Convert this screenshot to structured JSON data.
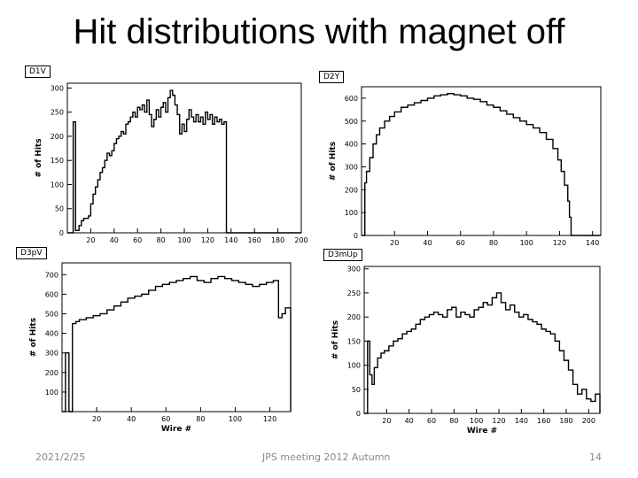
{
  "slide": {
    "title": "Hit distributions with magnet off",
    "footer_date": "2021/2/25",
    "footer_center": "JPS meeting 2012 Autumn",
    "page_number": "14"
  },
  "chart_data": [
    {
      "type": "histogram",
      "title": "D1V",
      "xlabel": "",
      "ylabel": "# of Hits",
      "xlim": [
        0,
        200
      ],
      "ylim": [
        0,
        310
      ],
      "xticks": [
        20,
        40,
        60,
        80,
        100,
        120,
        140,
        160,
        180,
        200
      ],
      "yticks": [
        0,
        50,
        100,
        150,
        200,
        250,
        300
      ],
      "series": [
        {
          "points": [
            [
              0,
              0
            ],
            [
              4,
              0
            ],
            [
              5,
              230
            ],
            [
              6,
              230
            ],
            [
              7,
              5
            ],
            [
              10,
              15
            ],
            [
              12,
              25
            ],
            [
              14,
              30
            ],
            [
              16,
              30
            ],
            [
              18,
              35
            ],
            [
              20,
              60
            ],
            [
              22,
              80
            ],
            [
              24,
              95
            ],
            [
              26,
              110
            ],
            [
              28,
              125
            ],
            [
              30,
              135
            ],
            [
              32,
              150
            ],
            [
              34,
              165
            ],
            [
              36,
              160
            ],
            [
              38,
              170
            ],
            [
              40,
              185
            ],
            [
              42,
              195
            ],
            [
              44,
              200
            ],
            [
              46,
              210
            ],
            [
              48,
              205
            ],
            [
              50,
              225
            ],
            [
              52,
              230
            ],
            [
              54,
              240
            ],
            [
              56,
              250
            ],
            [
              58,
              240
            ],
            [
              60,
              260
            ],
            [
              62,
              255
            ],
            [
              64,
              265
            ],
            [
              66,
              250
            ],
            [
              68,
              275
            ],
            [
              70,
              245
            ],
            [
              72,
              220
            ],
            [
              74,
              235
            ],
            [
              76,
              255
            ],
            [
              78,
              240
            ],
            [
              80,
              260
            ],
            [
              82,
              270
            ],
            [
              84,
              250
            ],
            [
              86,
              280
            ],
            [
              88,
              295
            ],
            [
              90,
              285
            ],
            [
              92,
              265
            ],
            [
              94,
              245
            ],
            [
              96,
              205
            ],
            [
              98,
              225
            ],
            [
              100,
              210
            ],
            [
              102,
              235
            ],
            [
              104,
              255
            ],
            [
              106,
              240
            ],
            [
              108,
              230
            ],
            [
              110,
              245
            ],
            [
              112,
              230
            ],
            [
              114,
              240
            ],
            [
              116,
              225
            ],
            [
              118,
              250
            ],
            [
              120,
              235
            ],
            [
              122,
              245
            ],
            [
              124,
              225
            ],
            [
              126,
              240
            ],
            [
              128,
              230
            ],
            [
              130,
              235
            ],
            [
              132,
              225
            ],
            [
              134,
              230
            ],
            [
              136,
              0
            ],
            [
              200,
              0
            ]
          ]
        }
      ]
    },
    {
      "type": "histogram",
      "title": "D2Y",
      "xlabel": "",
      "ylabel": "# of Hits",
      "xlim": [
        0,
        145
      ],
      "ylim": [
        0,
        650
      ],
      "xticks": [
        20,
        40,
        60,
        80,
        100,
        120,
        140
      ],
      "yticks": [
        0,
        100,
        200,
        300,
        400,
        500,
        600
      ],
      "series": [
        {
          "points": [
            [
              0,
              0
            ],
            [
              1,
              0
            ],
            [
              2,
              230
            ],
            [
              3,
              280
            ],
            [
              5,
              340
            ],
            [
              7,
              400
            ],
            [
              9,
              440
            ],
            [
              11,
              470
            ],
            [
              14,
              500
            ],
            [
              17,
              520
            ],
            [
              20,
              540
            ],
            [
              24,
              560
            ],
            [
              28,
              570
            ],
            [
              32,
              580
            ],
            [
              36,
              590
            ],
            [
              40,
              600
            ],
            [
              44,
              610
            ],
            [
              48,
              615
            ],
            [
              52,
              620
            ],
            [
              56,
              615
            ],
            [
              60,
              610
            ],
            [
              64,
              600
            ],
            [
              68,
              595
            ],
            [
              72,
              585
            ],
            [
              76,
              570
            ],
            [
              80,
              560
            ],
            [
              84,
              545
            ],
            [
              88,
              530
            ],
            [
              92,
              515
            ],
            [
              96,
              500
            ],
            [
              100,
              485
            ],
            [
              104,
              470
            ],
            [
              108,
              450
            ],
            [
              112,
              420
            ],
            [
              116,
              380
            ],
            [
              119,
              330
            ],
            [
              121,
              280
            ],
            [
              123,
              220
            ],
            [
              125,
              150
            ],
            [
              126,
              80
            ],
            [
              127,
              0
            ],
            [
              145,
              0
            ]
          ]
        }
      ]
    },
    {
      "type": "histogram",
      "title": "D3pV",
      "xlabel": "Wire #",
      "ylabel": "# of Hits",
      "xlim": [
        0,
        132
      ],
      "ylim": [
        0,
        760
      ],
      "xticks": [
        20,
        40,
        60,
        80,
        100,
        120
      ],
      "yticks": [
        100,
        200,
        300,
        400,
        500,
        600,
        700
      ],
      "series": [
        {
          "points": [
            [
              0,
              0
            ],
            [
              1,
              0
            ],
            [
              2,
              300
            ],
            [
              3,
              300
            ],
            [
              4,
              0
            ],
            [
              5,
              0
            ],
            [
              6,
              450
            ],
            [
              8,
              460
            ],
            [
              10,
              470
            ],
            [
              14,
              480
            ],
            [
              18,
              490
            ],
            [
              22,
              500
            ],
            [
              26,
              520
            ],
            [
              30,
              540
            ],
            [
              34,
              560
            ],
            [
              38,
              580
            ],
            [
              42,
              590
            ],
            [
              46,
              600
            ],
            [
              50,
              620
            ],
            [
              54,
              640
            ],
            [
              58,
              650
            ],
            [
              62,
              660
            ],
            [
              66,
              670
            ],
            [
              70,
              680
            ],
            [
              74,
              690
            ],
            [
              78,
              670
            ],
            [
              82,
              660
            ],
            [
              86,
              680
            ],
            [
              90,
              690
            ],
            [
              94,
              680
            ],
            [
              98,
              670
            ],
            [
              102,
              660
            ],
            [
              106,
              650
            ],
            [
              110,
              640
            ],
            [
              114,
              650
            ],
            [
              118,
              660
            ],
            [
              122,
              670
            ],
            [
              125,
              480
            ],
            [
              127,
              500
            ],
            [
              129,
              530
            ],
            [
              132,
              0
            ]
          ]
        }
      ]
    },
    {
      "type": "histogram",
      "title": "D3mUp",
      "xlabel": "Wire #",
      "ylabel": "# of Hits",
      "xlim": [
        0,
        210
      ],
      "ylim": [
        0,
        305
      ],
      "xticks": [
        20,
        40,
        60,
        80,
        100,
        120,
        140,
        160,
        180,
        200
      ],
      "yticks": [
        0,
        50,
        100,
        150,
        200,
        250,
        300
      ],
      "series": [
        {
          "points": [
            [
              0,
              0
            ],
            [
              2,
              0
            ],
            [
              3,
              150
            ],
            [
              5,
              80
            ],
            [
              7,
              60
            ],
            [
              9,
              95
            ],
            [
              12,
              115
            ],
            [
              15,
              125
            ],
            [
              18,
              130
            ],
            [
              22,
              140
            ],
            [
              26,
              150
            ],
            [
              30,
              155
            ],
            [
              34,
              165
            ],
            [
              38,
              170
            ],
            [
              42,
              175
            ],
            [
              46,
              185
            ],
            [
              50,
              195
            ],
            [
              54,
              200
            ],
            [
              58,
              205
            ],
            [
              62,
              210
            ],
            [
              66,
              205
            ],
            [
              70,
              200
            ],
            [
              74,
              215
            ],
            [
              78,
              220
            ],
            [
              82,
              200
            ],
            [
              86,
              210
            ],
            [
              90,
              205
            ],
            [
              94,
              200
            ],
            [
              98,
              215
            ],
            [
              102,
              220
            ],
            [
              106,
              230
            ],
            [
              110,
              225
            ],
            [
              114,
              240
            ],
            [
              118,
              250
            ],
            [
              122,
              230
            ],
            [
              126,
              215
            ],
            [
              130,
              225
            ],
            [
              134,
              210
            ],
            [
              138,
              200
            ],
            [
              142,
              205
            ],
            [
              146,
              195
            ],
            [
              150,
              190
            ],
            [
              154,
              185
            ],
            [
              158,
              175
            ],
            [
              162,
              170
            ],
            [
              166,
              165
            ],
            [
              170,
              150
            ],
            [
              174,
              130
            ],
            [
              178,
              110
            ],
            [
              182,
              90
            ],
            [
              186,
              60
            ],
            [
              190,
              40
            ],
            [
              194,
              50
            ],
            [
              198,
              30
            ],
            [
              202,
              25
            ],
            [
              206,
              40
            ],
            [
              210,
              0
            ]
          ]
        }
      ]
    }
  ]
}
